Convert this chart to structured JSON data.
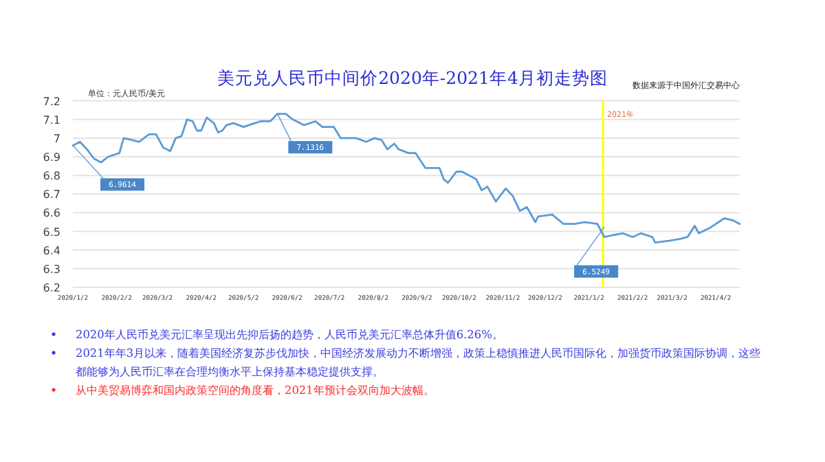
{
  "chart_data": {
    "type": "line",
    "title": "美元兑人民币中间价2020年-2021年4月初走势图",
    "ylabel": "单位：元人民币/美元",
    "x": [
      "2020-01-02",
      "2020-01-07",
      "2020-01-12",
      "2020-01-17",
      "2020-01-22",
      "2020-01-27",
      "2020-02-04",
      "2020-02-07",
      "2020-02-13",
      "2020-02-18",
      "2020-02-25",
      "2020-03-01",
      "2020-03-06",
      "2020-03-11",
      "2020-03-15",
      "2020-03-19",
      "2020-03-23",
      "2020-03-27",
      "2020-03-30",
      "2020-04-02",
      "2020-04-06",
      "2020-04-11",
      "2020-04-14",
      "2020-04-17",
      "2020-04-20",
      "2020-04-25",
      "2020-05-02",
      "2020-05-10",
      "2020-05-14",
      "2020-05-21",
      "2020-05-26",
      "2020-06-01",
      "2020-06-06",
      "2020-06-14",
      "2020-06-22",
      "2020-06-27",
      "2020-07-05",
      "2020-07-10",
      "2020-07-21",
      "2020-07-28",
      "2020-08-03",
      "2020-08-08",
      "2020-08-12",
      "2020-08-17",
      "2020-08-20",
      "2020-08-27",
      "2020-09-01",
      "2020-09-08",
      "2020-09-18",
      "2020-09-21",
      "2020-09-24",
      "2020-09-30",
      "2020-10-04",
      "2020-10-14",
      "2020-10-18",
      "2020-10-22",
      "2020-10-28",
      "2020-11-04",
      "2020-11-09",
      "2020-11-14",
      "2020-11-19",
      "2020-11-25",
      "2020-11-27",
      "2020-12-07",
      "2020-12-15",
      "2020-12-23",
      "2020-12-30",
      "2021-01-08",
      "2021-01-13",
      "2021-01-19",
      "2021-01-26",
      "2021-02-02",
      "2021-02-08",
      "2021-02-16",
      "2021-02-18",
      "2021-02-28",
      "2021-03-08",
      "2021-03-13",
      "2021-03-18",
      "2021-03-21",
      "2021-03-29",
      "2021-04-04",
      "2021-04-08",
      "2021-04-14",
      "2021-04-19"
    ],
    "series": [
      {
        "color": "#5b9bd5",
        "values": [
          6.96,
          6.98,
          6.94,
          6.89,
          6.87,
          6.9,
          6.92,
          7.0,
          6.99,
          6.98,
          7.02,
          7.02,
          6.95,
          6.93,
          7.0,
          7.01,
          7.1,
          7.09,
          7.04,
          7.04,
          7.11,
          7.08,
          7.03,
          7.04,
          7.07,
          7.08,
          7.06,
          7.08,
          7.09,
          7.09,
          7.13,
          7.13,
          7.1,
          7.07,
          7.09,
          7.06,
          7.06,
          7.0,
          7.0,
          6.98,
          7.0,
          6.99,
          6.94,
          6.97,
          6.94,
          6.92,
          6.92,
          6.84,
          6.84,
          6.78,
          6.76,
          6.82,
          6.82,
          6.78,
          6.72,
          6.74,
          6.66,
          6.73,
          6.69,
          6.61,
          6.63,
          6.55,
          6.58,
          6.59,
          6.54,
          6.54,
          6.55,
          6.54,
          6.47,
          6.48,
          6.49,
          6.47,
          6.49,
          6.47,
          6.44,
          6.45,
          6.46,
          6.47,
          6.53,
          6.49,
          6.52,
          6.55,
          6.57,
          6.56,
          6.54
        ]
      }
    ],
    "xlim": [
      "2020-01-02",
      "2021-04-19"
    ],
    "xticks": [
      {
        "value": "2020-01-02",
        "label": "2020/1/2"
      },
      {
        "value": "2020-02-02",
        "label": "2020/2/2"
      },
      {
        "value": "2020-03-02",
        "label": "2020/3/2"
      },
      {
        "value": "2020-04-02",
        "label": "2020/4/2"
      },
      {
        "value": "2020-05-02",
        "label": "2020/5/2"
      },
      {
        "value": "2020-06-02",
        "label": "2020/6/2"
      },
      {
        "value": "2020-07-02",
        "label": "2020/7/2"
      },
      {
        "value": "2020-08-02",
        "label": "2020/8/2"
      },
      {
        "value": "2020-09-02",
        "label": "2020/9/2"
      },
      {
        "value": "2020-10-02",
        "label": "2020/10/2"
      },
      {
        "value": "2020-11-02",
        "label": "2020/11/2"
      },
      {
        "value": "2020-12-02",
        "label": "2020/12/2"
      },
      {
        "value": "2021-01-02",
        "label": "2021/1/2"
      },
      {
        "value": "2021-02-02",
        "label": "2021/2/2"
      },
      {
        "value": "2021-03-02",
        "label": "2021/3/2"
      },
      {
        "value": "2021-04-02",
        "label": "2021/4/2"
      }
    ],
    "ylim": [
      6.2,
      7.2
    ],
    "yticks": [
      6.2,
      6.3,
      6.4,
      6.5,
      6.6,
      6.7,
      6.8,
      6.9,
      7,
      7.1,
      7.2
    ],
    "grid": "y",
    "marker": "none",
    "line_style": "solid",
    "ref_lines": [
      {
        "axis": "x",
        "value": "2021-01-12",
        "label": "2021年",
        "color": "#ffff00"
      }
    ],
    "annotations": [
      {
        "text": "6.9614",
        "x": "2020-01-02",
        "y": 6.9614
      },
      {
        "text": "7.1316",
        "x": "2020-05-26",
        "y": 7.1316
      },
      {
        "text": "6.5249",
        "x": "2021-01-13",
        "y": 6.5249
      },
      "数据来源于中国外汇交易中心",
      "2020年人民币兑美元汇率呈现出先抑后扬的趋势，人民币兑美元汇率总体升值6.26%。",
      "2021年年3月以来，随着美国经济复苏步伐加快，中国经济发展动力不断增强，政策上稳慎推进人民币国际化，加强货币政策国际协调，这些都能够为人民币汇率在合理均衡水平上保持基本稳定提供支撑。",
      "从中美贸易博弈和国内政策空间的角度看，2021年预计会双向加大波幅。"
    ]
  }
}
